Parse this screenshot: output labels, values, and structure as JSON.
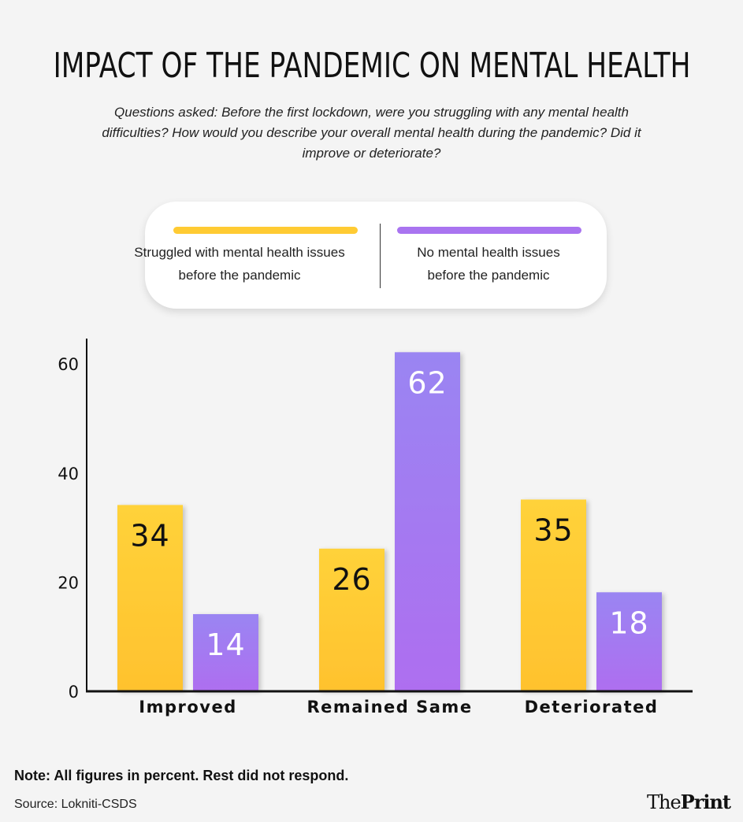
{
  "title": "IMPACT OF THE PANDEMIC ON MENTAL HEALTH",
  "subtitle": "Questions asked: Before the first lockdown, were you struggling with any mental health difficulties? How would you describe your overall mental health during the pandemic? Did it improve or deteriorate?",
  "note": "Note: All figures in percent. Rest did not respond.",
  "source": "Source: Lokniti-CSDS",
  "logo": {
    "part1": "The",
    "part2": "Print"
  },
  "colors": {
    "series1": "#ffcb33",
    "series2": "#a974f0",
    "background": "#f4f4f4"
  },
  "chart_data": {
    "type": "bar",
    "categories": [
      "Improved",
      "Remained Same",
      "Deteriorated"
    ],
    "series": [
      {
        "name": "Struggled with mental health issues before the pandemic",
        "values": [
          34,
          26,
          35
        ]
      },
      {
        "name": "No mental health issues before the pandemic",
        "values": [
          14,
          62,
          18
        ]
      }
    ],
    "yticks": [
      "0",
      "20",
      "40",
      "60"
    ],
    "ylim": [
      0,
      64.5
    ],
    "xlabel": "",
    "ylabel": "",
    "grid": false,
    "legend": "top"
  }
}
